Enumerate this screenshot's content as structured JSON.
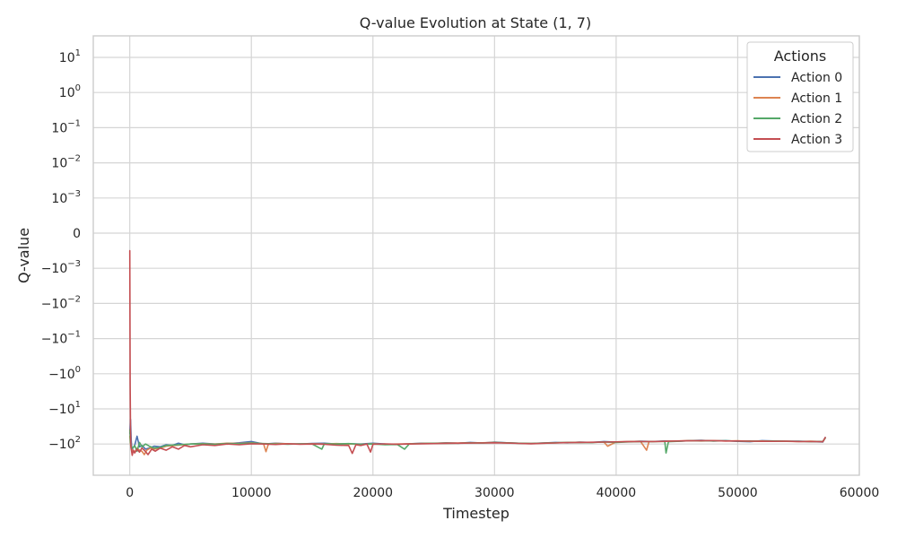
{
  "chart_data": {
    "type": "line",
    "title": "Q-value Evolution at State (1, 7)",
    "xlabel": "Timestep",
    "ylabel": "Q-value",
    "yscale": "symlog",
    "grid": true,
    "xlim": [
      -3000,
      60000
    ],
    "xticks": [
      0,
      10000,
      20000,
      30000,
      40000,
      50000,
      60000
    ],
    "xtick_labels": [
      "0",
      "10000",
      "20000",
      "30000",
      "40000",
      "50000",
      "60000"
    ],
    "yticks": [
      {
        "base": "10",
        "exp": "1",
        "sign": ""
      },
      {
        "base": "10",
        "exp": "0",
        "sign": ""
      },
      {
        "base": "10",
        "exp": "−1",
        "sign": ""
      },
      {
        "base": "10",
        "exp": "−2",
        "sign": ""
      },
      {
        "base": "10",
        "exp": "−3",
        "sign": ""
      },
      {
        "base": "0",
        "exp": "",
        "sign": ""
      },
      {
        "base": "10",
        "exp": "−3",
        "sign": "−"
      },
      {
        "base": "10",
        "exp": "−2",
        "sign": "−"
      },
      {
        "base": "10",
        "exp": "−1",
        "sign": "−"
      },
      {
        "base": "10",
        "exp": "0",
        "sign": "−"
      },
      {
        "base": "10",
        "exp": "1",
        "sign": "−"
      },
      {
        "base": "10",
        "exp": "2",
        "sign": "−"
      }
    ],
    "legend": {
      "title": "Actions",
      "position": "top-right"
    },
    "series": [
      {
        "name": "Action 0",
        "color": "#4c72b0",
        "x": [
          0,
          60,
          120,
          180,
          250,
          400,
          600,
          800,
          1000,
          1300,
          1600,
          2000,
          2500,
          3000,
          3500,
          4000,
          4500,
          5000,
          6000,
          7000,
          8000,
          9000,
          10000,
          11000,
          12000,
          13000,
          14000,
          15000,
          16000,
          17000,
          18000,
          19000,
          20000,
          21000,
          22000,
          23000,
          24000,
          25000,
          26000,
          27000,
          28000,
          29000,
          30000,
          31000,
          32000,
          33000,
          34000,
          35000,
          36000,
          37000,
          38000,
          39000,
          40000,
          41000,
          42000,
          43000,
          44000,
          45000,
          46000,
          47000,
          48000,
          49000,
          50000,
          51000,
          52000,
          53000,
          54000,
          55000,
          56000,
          57000,
          57200
        ],
        "y": [
          -50,
          -20,
          -80,
          -150,
          -130,
          -110,
          -60,
          -120,
          -110,
          -140,
          -130,
          -115,
          -120,
          -105,
          -110,
          -95,
          -105,
          -100,
          -95,
          -100,
          -98,
          -92,
          -85,
          -100,
          -95,
          -98,
          -100,
          -96,
          -95,
          -100,
          -98,
          -100,
          -95,
          -100,
          -102,
          -98,
          -95,
          -96,
          -92,
          -95,
          -90,
          -93,
          -88,
          -92,
          -95,
          -96,
          -93,
          -90,
          -92,
          -88,
          -90,
          -85,
          -88,
          -86,
          -83,
          -85,
          -82,
          -84,
          -80,
          -78,
          -82,
          -80,
          -84,
          -86,
          -80,
          -82,
          -84,
          -83,
          -85,
          -88,
          -65
        ]
      },
      {
        "name": "Action 1",
        "color": "#dd8452",
        "x": [
          0,
          60,
          120,
          250,
          400,
          600,
          800,
          1000,
          1200,
          1400,
          1700,
          2000,
          2500,
          3000,
          4000,
          5000,
          6000,
          7000,
          8000,
          9000,
          10000,
          11000,
          11200,
          11400,
          12000,
          13000,
          14000,
          15000,
          16000,
          17000,
          18000,
          19000,
          20000,
          21000,
          22000,
          23000,
          24000,
          25000,
          26000,
          27000,
          28000,
          29000,
          30000,
          31000,
          32000,
          33000,
          34000,
          35000,
          36000,
          37000,
          38000,
          39000,
          39300,
          40000,
          41000,
          42000,
          42500,
          42700,
          43000,
          44000,
          45000,
          46000,
          47000,
          48000,
          49000,
          50000,
          51000,
          52000,
          53000,
          54000,
          55000,
          56000,
          57000,
          57200
        ],
        "y": [
          -60,
          -100,
          -140,
          -150,
          -170,
          -130,
          -150,
          -160,
          -200,
          -150,
          -130,
          -140,
          -130,
          -115,
          -108,
          -100,
          -98,
          -100,
          -95,
          -96,
          -92,
          -98,
          -165,
          -100,
          -96,
          -98,
          -100,
          -98,
          -100,
          -97,
          -100,
          -102,
          -98,
          -101,
          -100,
          -98,
          -96,
          -95,
          -94,
          -93,
          -92,
          -92,
          -90,
          -93,
          -95,
          -96,
          -95,
          -92,
          -90,
          -89,
          -90,
          -88,
          -115,
          -87,
          -85,
          -84,
          -150,
          -86,
          -85,
          -84,
          -82,
          -80,
          -82,
          -80,
          -82,
          -81,
          -84,
          -82,
          -83,
          -84,
          -85,
          -83,
          -86,
          -68
        ]
      },
      {
        "name": "Action 2",
        "color": "#55a868",
        "x": [
          0,
          60,
          120,
          250,
          400,
          600,
          800,
          1000,
          1300,
          1600,
          2000,
          2500,
          3000,
          4000,
          5000,
          6000,
          7000,
          8000,
          9000,
          10000,
          11000,
          12000,
          13000,
          14000,
          15000,
          15800,
          16000,
          17000,
          18000,
          19000,
          20000,
          21000,
          22000,
          22600,
          23000,
          24000,
          25000,
          26000,
          27000,
          28000,
          29000,
          30000,
          31000,
          32000,
          33000,
          34000,
          35000,
          36000,
          37000,
          38000,
          39000,
          40000,
          41000,
          42000,
          43000,
          44000,
          44100,
          44300,
          45000,
          46000,
          47000,
          48000,
          49000,
          50000,
          51000,
          52000,
          53000,
          54000,
          55000,
          56000,
          57000,
          57200
        ],
        "y": [
          -40,
          -90,
          -120,
          -130,
          -110,
          -160,
          -90,
          -120,
          -100,
          -115,
          -130,
          -125,
          -110,
          -105,
          -100,
          -98,
          -102,
          -96,
          -98,
          -94,
          -97,
          -99,
          -101,
          -98,
          -100,
          -140,
          -98,
          -100,
          -97,
          -102,
          -100,
          -105,
          -103,
          -140,
          -99,
          -97,
          -95,
          -96,
          -95,
          -92,
          -94,
          -91,
          -92,
          -95,
          -97,
          -94,
          -92,
          -90,
          -91,
          -90,
          -88,
          -90,
          -87,
          -86,
          -85,
          -84,
          -180,
          -86,
          -84,
          -81,
          -80,
          -82,
          -81,
          -83,
          -82,
          -84,
          -82,
          -83,
          -84,
          -86,
          -84,
          -68
        ]
      },
      {
        "name": "Action 3",
        "color": "#c44e52",
        "x": [
          0,
          30,
          60,
          100,
          150,
          200,
          300,
          400,
          600,
          800,
          1000,
          1200,
          1500,
          1800,
          2100,
          2500,
          3000,
          3500,
          4000,
          4500,
          5000,
          6000,
          7000,
          8000,
          9000,
          10000,
          11000,
          12000,
          13000,
          14000,
          15000,
          16000,
          17000,
          18000,
          18300,
          18600,
          19000,
          19500,
          19800,
          20000,
          21000,
          22000,
          23000,
          24000,
          25000,
          26000,
          27000,
          28000,
          29000,
          30000,
          31000,
          32000,
          33000,
          34000,
          35000,
          36000,
          37000,
          38000,
          39000,
          40000,
          41000,
          42000,
          43000,
          44000,
          45000,
          46000,
          47000,
          48000,
          49000,
          50000,
          51000,
          52000,
          53000,
          54000,
          55000,
          56000,
          57000,
          57200
        ],
        "y": [
          -0.0005,
          -2,
          -40,
          -120,
          -160,
          -210,
          -150,
          -180,
          -140,
          -170,
          -130,
          -150,
          -200,
          -140,
          -160,
          -130,
          -150,
          -120,
          -140,
          -110,
          -120,
          -105,
          -110,
          -100,
          -105,
          -98,
          -100,
          -103,
          -99,
          -101,
          -100,
          -102,
          -108,
          -110,
          -185,
          -104,
          -110,
          -100,
          -170,
          -102,
          -99,
          -101,
          -100,
          -98,
          -97,
          -96,
          -95,
          -94,
          -93,
          -92,
          -94,
          -96,
          -98,
          -95,
          -93,
          -91,
          -90,
          -89,
          -88,
          -87,
          -86,
          -85,
          -85,
          -84,
          -82,
          -81,
          -80,
          -80,
          -82,
          -82,
          -83,
          -84,
          -84,
          -83,
          -85,
          -85,
          -86,
          -65
        ]
      }
    ]
  }
}
